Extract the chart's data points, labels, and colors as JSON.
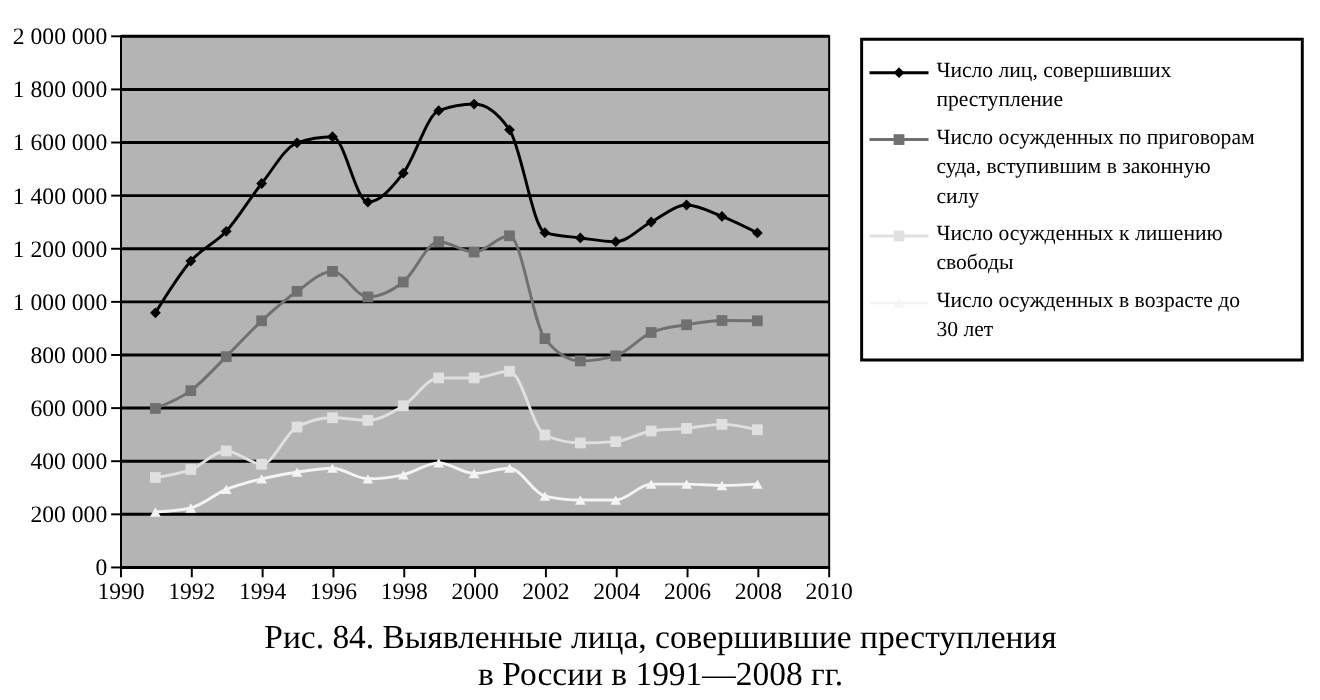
{
  "chart_data": {
    "type": "line",
    "title": "Рис. 84. Выявленные лица, совершившие преступления\nв России в 1991—2008 гг.",
    "x": [
      1991,
      1992,
      1993,
      1994,
      1995,
      1996,
      1997,
      1998,
      1999,
      2000,
      2001,
      2002,
      2003,
      2004,
      2005,
      2006,
      2007,
      2008
    ],
    "series": [
      {
        "name": "Число лиц, совершивших преступление",
        "color": "#000000",
        "marker": "diamond",
        "values": [
          955000,
          1150000,
          1262000,
          1442000,
          1595000,
          1618000,
          1372000,
          1481000,
          1716000,
          1741000,
          1644000,
          1257000,
          1237000,
          1223000,
          1297000,
          1361000,
          1318000,
          1256000
        ]
      },
      {
        "name": "Число осужденных по приговорам суда, вступившим в законную силу",
        "color": "#707070",
        "marker": "square",
        "values": [
          595000,
          662000,
          790000,
          925000,
          1036000,
          1111000,
          1015000,
          1071000,
          1223000,
          1184000,
          1245000,
          858000,
          774000,
          793000,
          881000,
          910000,
          926000,
          925000
        ]
      },
      {
        "name": "Число осужденных к лишению свободы",
        "color": "#e0e0e0",
        "marker": "square",
        "values": [
          335000,
          365000,
          435000,
          385000,
          525000,
          560000,
          550000,
          605000,
          710000,
          710000,
          735000,
          495000,
          465000,
          470000,
          510000,
          520000,
          535000,
          515000
        ]
      },
      {
        "name": "Число осужденных в возрасте до 30 лет",
        "color": "#f4f4f4",
        "marker": "triangle",
        "values": [
          205000,
          220000,
          290000,
          330000,
          355000,
          370000,
          330000,
          345000,
          390000,
          350000,
          370000,
          265000,
          250000,
          250000,
          310000,
          310000,
          305000,
          310000
        ]
      }
    ],
    "xlim": [
      1990,
      2010
    ],
    "xticks": [
      1990,
      1992,
      1994,
      1996,
      1998,
      2000,
      2002,
      2004,
      2006,
      2008,
      2010
    ],
    "ylim": [
      0,
      2000000
    ],
    "yticks": [
      0,
      200000,
      400000,
      600000,
      800000,
      1000000,
      1200000,
      1400000,
      1600000,
      1800000,
      2000000
    ],
    "grid": "y",
    "legend": "right",
    "line_style": "solid"
  }
}
